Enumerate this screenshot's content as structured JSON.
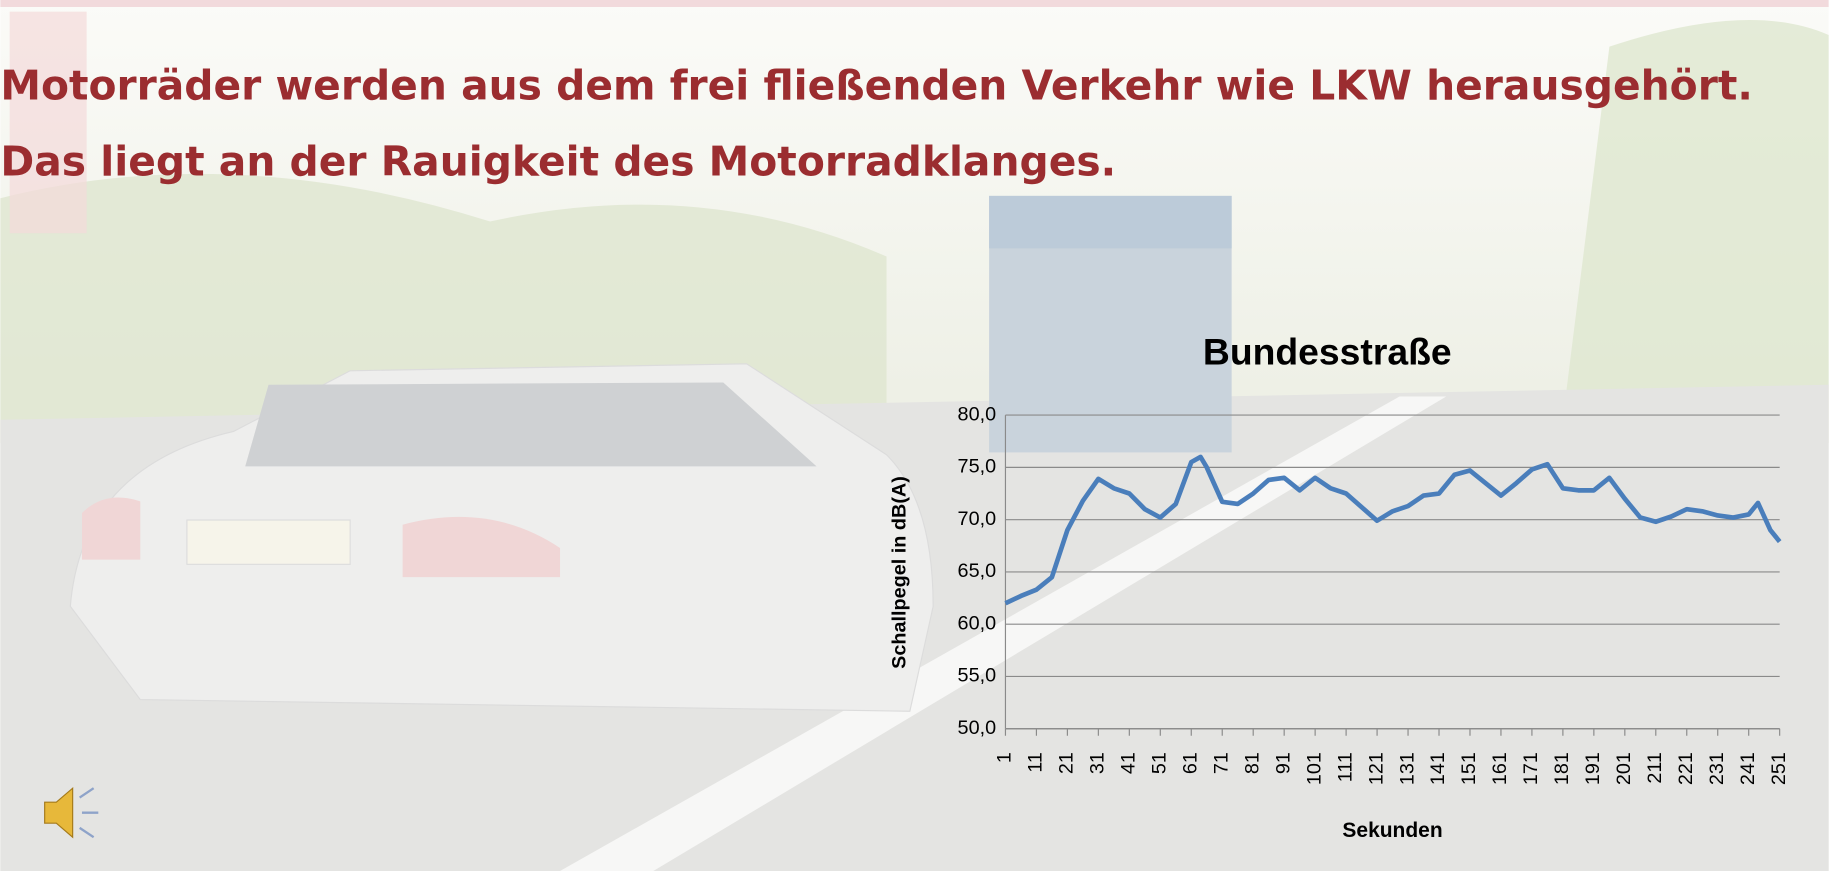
{
  "slide": {
    "title_lines": [
      "Motorräder werden aus dem frei fließenden Verkehr wie LKW herausgehört.",
      "Das liegt an der Rauigkeit des Motorradklanges."
    ]
  },
  "chart_data": {
    "type": "line",
    "title": "Bundesstraße",
    "xlabel": "Sekunden",
    "ylabel": "Schallpegel in dB(A)",
    "x": [
      1,
      6,
      11,
      16,
      21,
      26,
      31,
      36,
      41,
      46,
      51,
      56,
      61,
      64,
      66,
      71,
      76,
      81,
      86,
      91,
      96,
      101,
      106,
      111,
      116,
      121,
      126,
      131,
      136,
      141,
      146,
      151,
      156,
      161,
      166,
      171,
      176,
      181,
      186,
      191,
      196,
      201,
      206,
      211,
      216,
      221,
      226,
      231,
      236,
      241,
      244,
      248,
      251
    ],
    "series": [
      {
        "name": "Schallpegel",
        "color": "#4a7ebb",
        "values": [
          62.0,
          62.7,
          63.3,
          64.5,
          69.0,
          71.8,
          73.9,
          73.0,
          72.5,
          71.0,
          70.2,
          71.5,
          75.5,
          76.0,
          75.0,
          71.7,
          71.5,
          72.5,
          73.8,
          74.0,
          72.8,
          74.0,
          73.0,
          72.5,
          71.2,
          69.9,
          70.8,
          71.3,
          72.3,
          72.5,
          74.3,
          74.7,
          73.5,
          72.3,
          73.5,
          74.8,
          75.3,
          73.0,
          72.8,
          72.8,
          74.0,
          72.0,
          70.2,
          69.8,
          70.3,
          71.0,
          70.8,
          70.4,
          70.2,
          70.5,
          71.6,
          69.0,
          67.9
        ]
      }
    ],
    "xlim": [
      1,
      251
    ],
    "xticks": [
      1,
      11,
      21,
      31,
      41,
      51,
      61,
      71,
      81,
      91,
      101,
      111,
      121,
      131,
      141,
      151,
      161,
      171,
      181,
      191,
      201,
      211,
      221,
      231,
      241,
      251
    ],
    "ylim": [
      50,
      80
    ],
    "yticks": [
      {
        "value": 50,
        "label": "50,0"
      },
      {
        "value": 55,
        "label": "55,0"
      },
      {
        "value": 60,
        "label": "60,0"
      },
      {
        "value": 65,
        "label": "65,0"
      },
      {
        "value": 70,
        "label": "70,0"
      },
      {
        "value": 75,
        "label": "75,0"
      },
      {
        "value": 80,
        "label": "80,0"
      }
    ],
    "grid": true
  }
}
